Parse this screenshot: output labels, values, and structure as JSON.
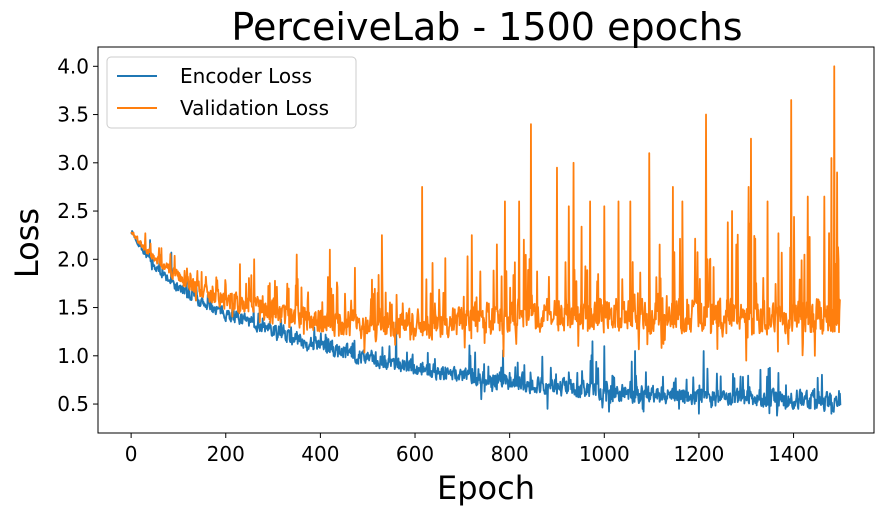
{
  "chart_data": {
    "type": "line",
    "title": "PerceiveLab - 1500 epochs",
    "xlabel": "Epoch",
    "ylabel": "Loss",
    "xlim": [
      -70,
      1570
    ],
    "ylim": [
      0.2,
      4.2
    ],
    "xticks": [
      0,
      200,
      400,
      600,
      800,
      1000,
      1200,
      1400
    ],
    "yticks": [
      0.5,
      1.0,
      1.5,
      2.0,
      2.5,
      3.0,
      3.5,
      4.0
    ],
    "grid": false,
    "legend_position": "upper-left",
    "noise_seed": 7,
    "series": [
      {
        "name": "Encoder Loss",
        "color": "#1f77b4",
        "n_points": 1500,
        "trend": [
          [
            0,
            2.3
          ],
          [
            20,
            2.12
          ],
          [
            50,
            1.92
          ],
          [
            100,
            1.7
          ],
          [
            150,
            1.55
          ],
          [
            200,
            1.44
          ],
          [
            300,
            1.26
          ],
          [
            400,
            1.1
          ],
          [
            500,
            0.98
          ],
          [
            600,
            0.88
          ],
          [
            700,
            0.8
          ],
          [
            800,
            0.73
          ],
          [
            900,
            0.68
          ],
          [
            1000,
            0.63
          ],
          [
            1100,
            0.6
          ],
          [
            1200,
            0.58
          ],
          [
            1300,
            0.56
          ],
          [
            1400,
            0.55
          ],
          [
            1500,
            0.54
          ]
        ],
        "noise": [
          [
            0,
            0.02
          ],
          [
            100,
            0.05
          ],
          [
            400,
            0.07
          ],
          [
            800,
            0.08
          ],
          [
            1500,
            0.09
          ]
        ],
        "spike_rate": 0.1,
        "spike_scale": [
          [
            0,
            0.05
          ],
          [
            400,
            0.12
          ],
          [
            800,
            0.2
          ],
          [
            1500,
            0.25
          ]
        ],
        "peaks": [
          {
            "x": 40,
            "y": 2.2
          },
          {
            "x": 60,
            "y": 2.05
          },
          {
            "x": 85,
            "y": 2.07
          },
          {
            "x": 560,
            "y": 1.35
          },
          {
            "x": 975,
            "y": 1.15
          },
          {
            "x": 1000,
            "y": 1.1
          },
          {
            "x": 1065,
            "y": 1.05
          },
          {
            "x": 1210,
            "y": 1.05
          }
        ],
        "troughs": [
          {
            "x": 740,
            "y": 0.55
          },
          {
            "x": 880,
            "y": 0.45
          },
          {
            "x": 1010,
            "y": 0.42
          },
          {
            "x": 1200,
            "y": 0.4
          },
          {
            "x": 1365,
            "y": 0.38
          },
          {
            "x": 1480,
            "y": 0.4
          }
        ]
      },
      {
        "name": "Validation Loss",
        "color": "#ff7f0e",
        "n_points": 1500,
        "trend": [
          [
            0,
            2.3
          ],
          [
            20,
            2.16
          ],
          [
            50,
            2.0
          ],
          [
            100,
            1.82
          ],
          [
            150,
            1.68
          ],
          [
            200,
            1.58
          ],
          [
            300,
            1.45
          ],
          [
            400,
            1.36
          ],
          [
            500,
            1.32
          ],
          [
            600,
            1.32
          ],
          [
            700,
            1.36
          ],
          [
            800,
            1.4
          ],
          [
            900,
            1.42
          ],
          [
            1000,
            1.42
          ],
          [
            1100,
            1.42
          ],
          [
            1200,
            1.42
          ],
          [
            1300,
            1.4
          ],
          [
            1400,
            1.4
          ],
          [
            1500,
            1.4
          ]
        ],
        "noise": [
          [
            0,
            0.02
          ],
          [
            100,
            0.06
          ],
          [
            300,
            0.1
          ],
          [
            600,
            0.14
          ],
          [
            1500,
            0.17
          ]
        ],
        "spike_rate": 0.13,
        "spike_scale": [
          [
            0,
            0.08
          ],
          [
            200,
            0.25
          ],
          [
            600,
            0.45
          ],
          [
            1000,
            0.6
          ],
          [
            1500,
            0.7
          ]
        ],
        "peaks": [
          {
            "x": 30,
            "y": 2.27
          },
          {
            "x": 230,
            "y": 1.95
          },
          {
            "x": 260,
            "y": 2.0
          },
          {
            "x": 350,
            "y": 2.05
          },
          {
            "x": 420,
            "y": 2.1
          },
          {
            "x": 530,
            "y": 2.25
          },
          {
            "x": 615,
            "y": 2.75
          },
          {
            "x": 720,
            "y": 2.25
          },
          {
            "x": 790,
            "y": 2.6
          },
          {
            "x": 820,
            "y": 2.6
          },
          {
            "x": 845,
            "y": 3.4
          },
          {
            "x": 900,
            "y": 2.95
          },
          {
            "x": 925,
            "y": 2.55
          },
          {
            "x": 935,
            "y": 3.0
          },
          {
            "x": 970,
            "y": 2.6
          },
          {
            "x": 1000,
            "y": 2.55
          },
          {
            "x": 1030,
            "y": 2.6
          },
          {
            "x": 1055,
            "y": 2.6
          },
          {
            "x": 1095,
            "y": 3.1
          },
          {
            "x": 1145,
            "y": 2.75
          },
          {
            "x": 1165,
            "y": 2.6
          },
          {
            "x": 1215,
            "y": 3.5
          },
          {
            "x": 1270,
            "y": 2.5
          },
          {
            "x": 1305,
            "y": 2.75
          },
          {
            "x": 1310,
            "y": 3.25
          },
          {
            "x": 1345,
            "y": 2.6
          },
          {
            "x": 1395,
            "y": 3.65
          },
          {
            "x": 1430,
            "y": 2.65
          },
          {
            "x": 1465,
            "y": 2.65
          },
          {
            "x": 1480,
            "y": 3.05
          },
          {
            "x": 1486,
            "y": 4.0
          },
          {
            "x": 1492,
            "y": 2.9
          }
        ],
        "troughs": [
          {
            "x": 1300,
            "y": 0.95
          },
          {
            "x": 1445,
            "y": 1.0
          }
        ]
      }
    ]
  }
}
